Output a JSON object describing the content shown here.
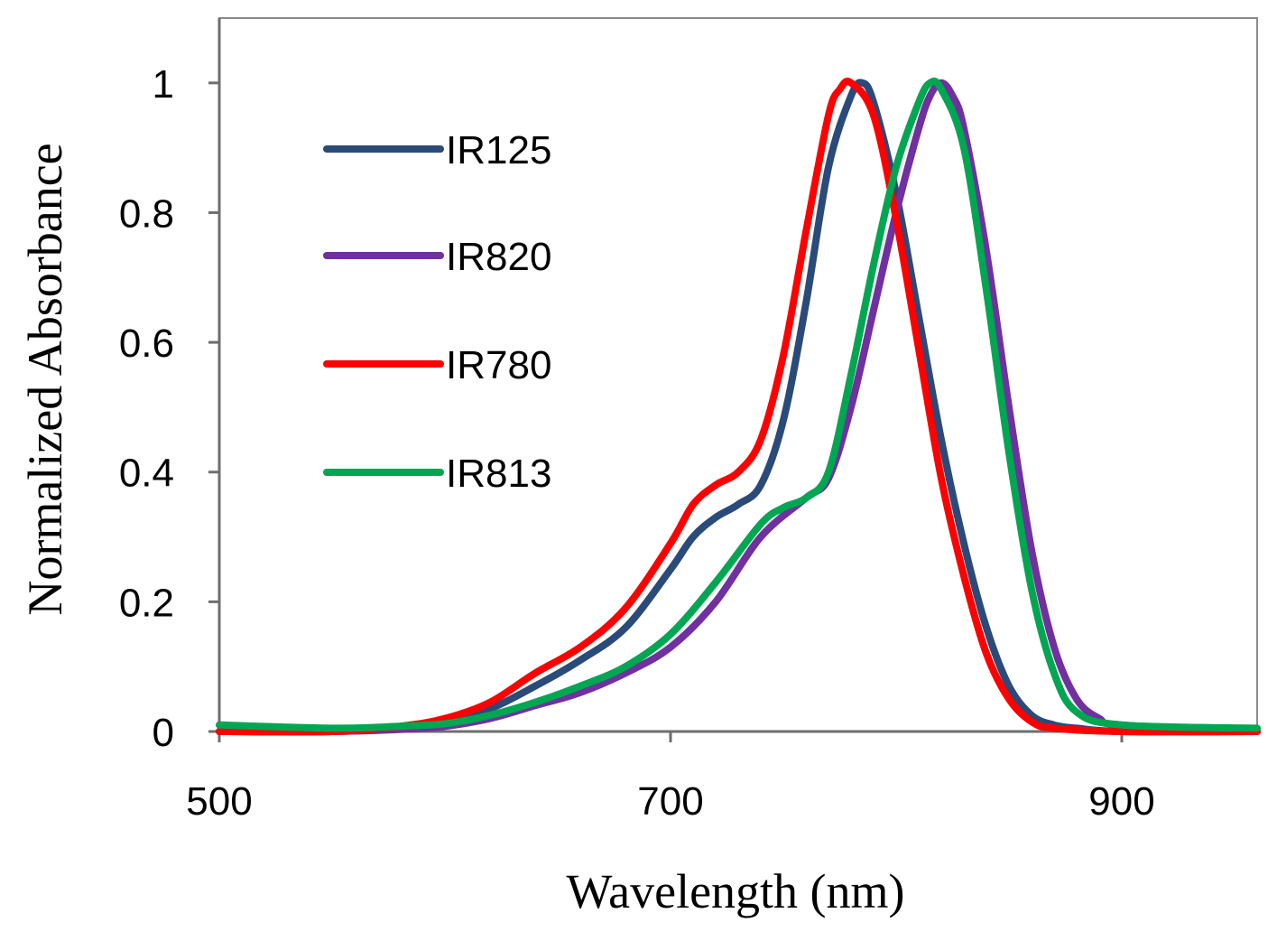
{
  "chart_data": {
    "type": "line",
    "title": "",
    "xlabel": "Wavelength (nm)",
    "ylabel": "Normalized Absorbance",
    "xlim": [
      500,
      960
    ],
    "ylim": [
      0,
      1.1
    ],
    "xticks": [
      500,
      700,
      900
    ],
    "xtick_labels": [
      "500",
      "700",
      "900"
    ],
    "yticks": [
      0,
      0.2,
      0.4,
      0.6,
      0.8,
      1
    ],
    "ytick_labels": [
      "0",
      "0.2",
      "0.4",
      "0.6",
      "0.8",
      "1"
    ],
    "grid": false,
    "legend_position": "top-left",
    "series": [
      {
        "name": "IR125",
        "color": "#2a4a7a",
        "x": [
          500,
          550,
          580,
          600,
          620,
          640,
          660,
          680,
          700,
          710,
          720,
          730,
          740,
          750,
          760,
          770,
          780,
          785,
          790,
          800,
          810,
          820,
          830,
          840,
          850,
          860,
          870,
          880,
          900,
          960
        ],
        "y": [
          0.0,
          0.0,
          0.005,
          0.015,
          0.035,
          0.07,
          0.11,
          0.16,
          0.25,
          0.3,
          0.33,
          0.35,
          0.38,
          0.48,
          0.66,
          0.87,
          0.98,
          1.0,
          0.97,
          0.83,
          0.64,
          0.45,
          0.29,
          0.16,
          0.07,
          0.025,
          0.01,
          0.005,
          0.0,
          0.0
        ]
      },
      {
        "name": "IR820",
        "color": "#7030a0",
        "x": [
          500,
          550,
          580,
          600,
          620,
          640,
          660,
          680,
          700,
          720,
          740,
          760,
          770,
          780,
          790,
          800,
          810,
          815,
          820,
          825,
          830,
          840,
          850,
          860,
          870,
          880,
          890,
          900,
          960
        ],
        "y": [
          0.0,
          0.0,
          0.003,
          0.008,
          0.02,
          0.04,
          0.06,
          0.09,
          0.13,
          0.2,
          0.3,
          0.36,
          0.39,
          0.5,
          0.65,
          0.8,
          0.93,
          0.98,
          1.0,
          0.98,
          0.93,
          0.74,
          0.5,
          0.28,
          0.13,
          0.05,
          0.02,
          0.01,
          0.0
        ]
      },
      {
        "name": "IR780",
        "color": "#ff0000",
        "x": [
          500,
          550,
          580,
          600,
          620,
          640,
          660,
          680,
          700,
          710,
          720,
          730,
          740,
          750,
          760,
          770,
          775,
          780,
          790,
          800,
          810,
          820,
          830,
          840,
          850,
          860,
          870,
          900,
          960
        ],
        "y": [
          0.0,
          0.0,
          0.008,
          0.02,
          0.045,
          0.09,
          0.13,
          0.19,
          0.29,
          0.35,
          0.38,
          0.4,
          0.45,
          0.58,
          0.77,
          0.95,
          0.99,
          1.0,
          0.95,
          0.79,
          0.59,
          0.39,
          0.24,
          0.12,
          0.05,
          0.015,
          0.005,
          0.0,
          0.0
        ]
      },
      {
        "name": "IR813",
        "color": "#00a651",
        "x": [
          500,
          550,
          580,
          600,
          620,
          640,
          660,
          680,
          700,
          720,
          740,
          750,
          760,
          770,
          780,
          790,
          800,
          810,
          815,
          820,
          830,
          840,
          850,
          860,
          870,
          880,
          900,
          960
        ],
        "y": [
          0.01,
          0.005,
          0.008,
          0.012,
          0.025,
          0.045,
          0.07,
          0.1,
          0.15,
          0.23,
          0.32,
          0.345,
          0.36,
          0.4,
          0.55,
          0.72,
          0.87,
          0.97,
          1.0,
          0.99,
          0.9,
          0.68,
          0.43,
          0.22,
          0.09,
          0.03,
          0.01,
          0.005
        ]
      }
    ]
  }
}
